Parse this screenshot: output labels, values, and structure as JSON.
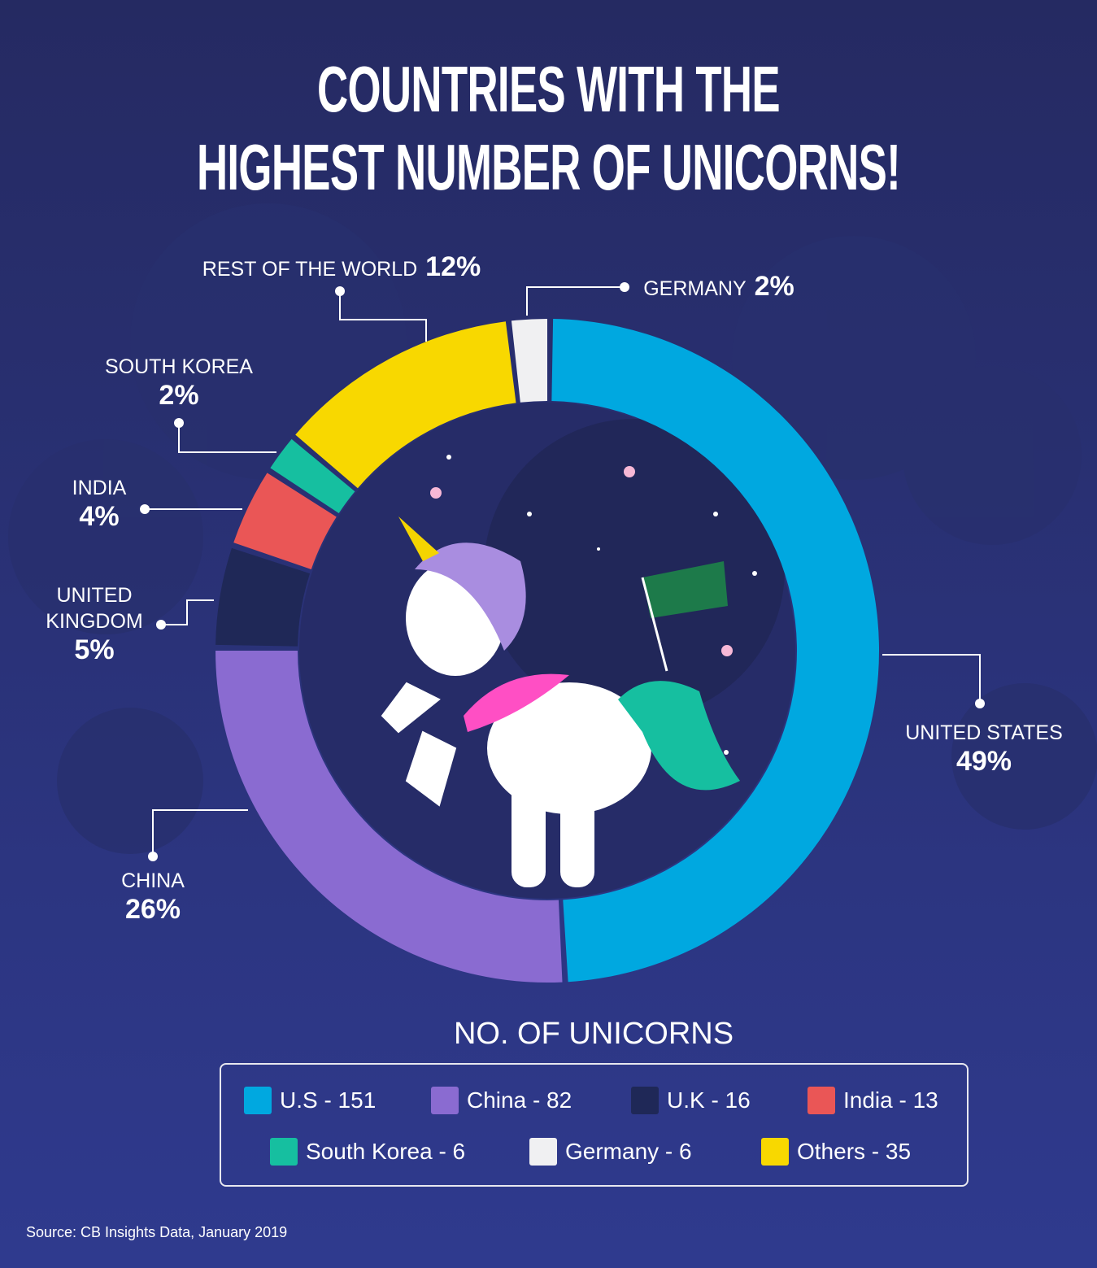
{
  "chart_data": {
    "type": "donut",
    "title": [
      "COUNTRIES WITH THE",
      "HIGHEST NUMBER OF UNICORNS!"
    ],
    "categories": [
      "UNITED STATES",
      "CHINA",
      "UNITED KINGDOM",
      "INDIA",
      "SOUTH KOREA",
      "GERMANY",
      "REST OF THE WORLD"
    ],
    "values": [
      49,
      26,
      5,
      4,
      2,
      2,
      12
    ],
    "value_labels": [
      "49%",
      "26%",
      "5%",
      "4%",
      "2%",
      "2%",
      "12%"
    ],
    "colors": [
      "#00a8e0",
      "#8a6bd1",
      "#1f2857",
      "#ea5656",
      "#16bfa0",
      "#f0f0f2",
      "#f8d800"
    ],
    "legend_title": "NO. OF UNICORNS",
    "legend_labels": [
      "U.S - 151",
      "China - 82",
      "U.K - 16",
      "India - 13",
      "South Korea - 6",
      "Germany - 6",
      "Others - 35"
    ],
    "source": "Source: CB Insights Data, January 2019"
  }
}
